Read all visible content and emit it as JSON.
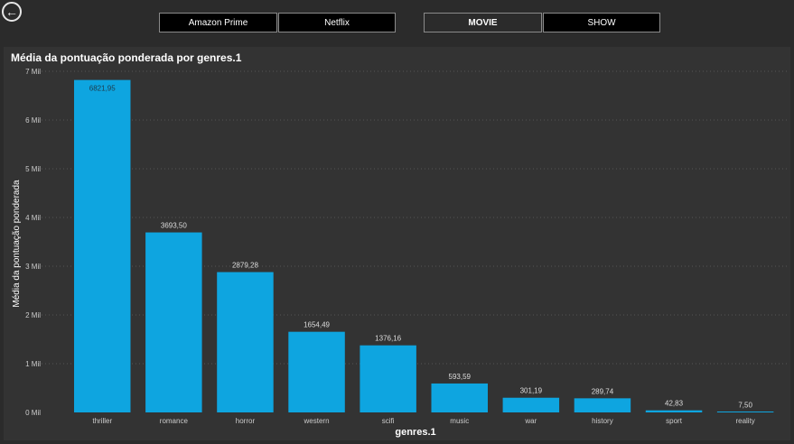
{
  "nav": {
    "back_icon": "arrow-left-circle-icon"
  },
  "platform_tabs": [
    {
      "label": "Amazon Prime",
      "selected": false
    },
    {
      "label": "Netflix",
      "selected": false
    }
  ],
  "type_tabs": [
    {
      "label": "MOVIE",
      "selected": true
    },
    {
      "label": "SHOW",
      "selected": false
    }
  ],
  "colors": {
    "bar": "#0ea5e0",
    "background": "#2b2b2b",
    "panel": "#333333"
  },
  "chart_data": {
    "type": "bar",
    "title": "Média da pontuação ponderada por genres.1",
    "xlabel": "genres.1",
    "ylabel": "Média da pontuação ponderada",
    "categories": [
      "thriller",
      "romance",
      "horror",
      "western",
      "scifi",
      "music",
      "war",
      "history",
      "sport",
      "reality"
    ],
    "values": [
      6821.95,
      3693.5,
      2879.28,
      1654.49,
      1376.16,
      593.59,
      301.19,
      289.74,
      42.83,
      7.5
    ],
    "data_labels": [
      "6821,95",
      "3693,50",
      "2879,28",
      "1654,49",
      "1376,16",
      "593,59",
      "301,19",
      "289,74",
      "42,83",
      "7,50"
    ],
    "y_ticks": [
      0,
      1000,
      2000,
      3000,
      4000,
      5000,
      6000,
      7000
    ],
    "y_tick_labels": [
      "0 Mil",
      "1 Mil",
      "2 Mil",
      "3 Mil",
      "4 Mil",
      "5 Mil",
      "6 Mil",
      "7 Mil"
    ],
    "ylim": [
      0,
      7000
    ],
    "grid": true,
    "legend": "none"
  }
}
